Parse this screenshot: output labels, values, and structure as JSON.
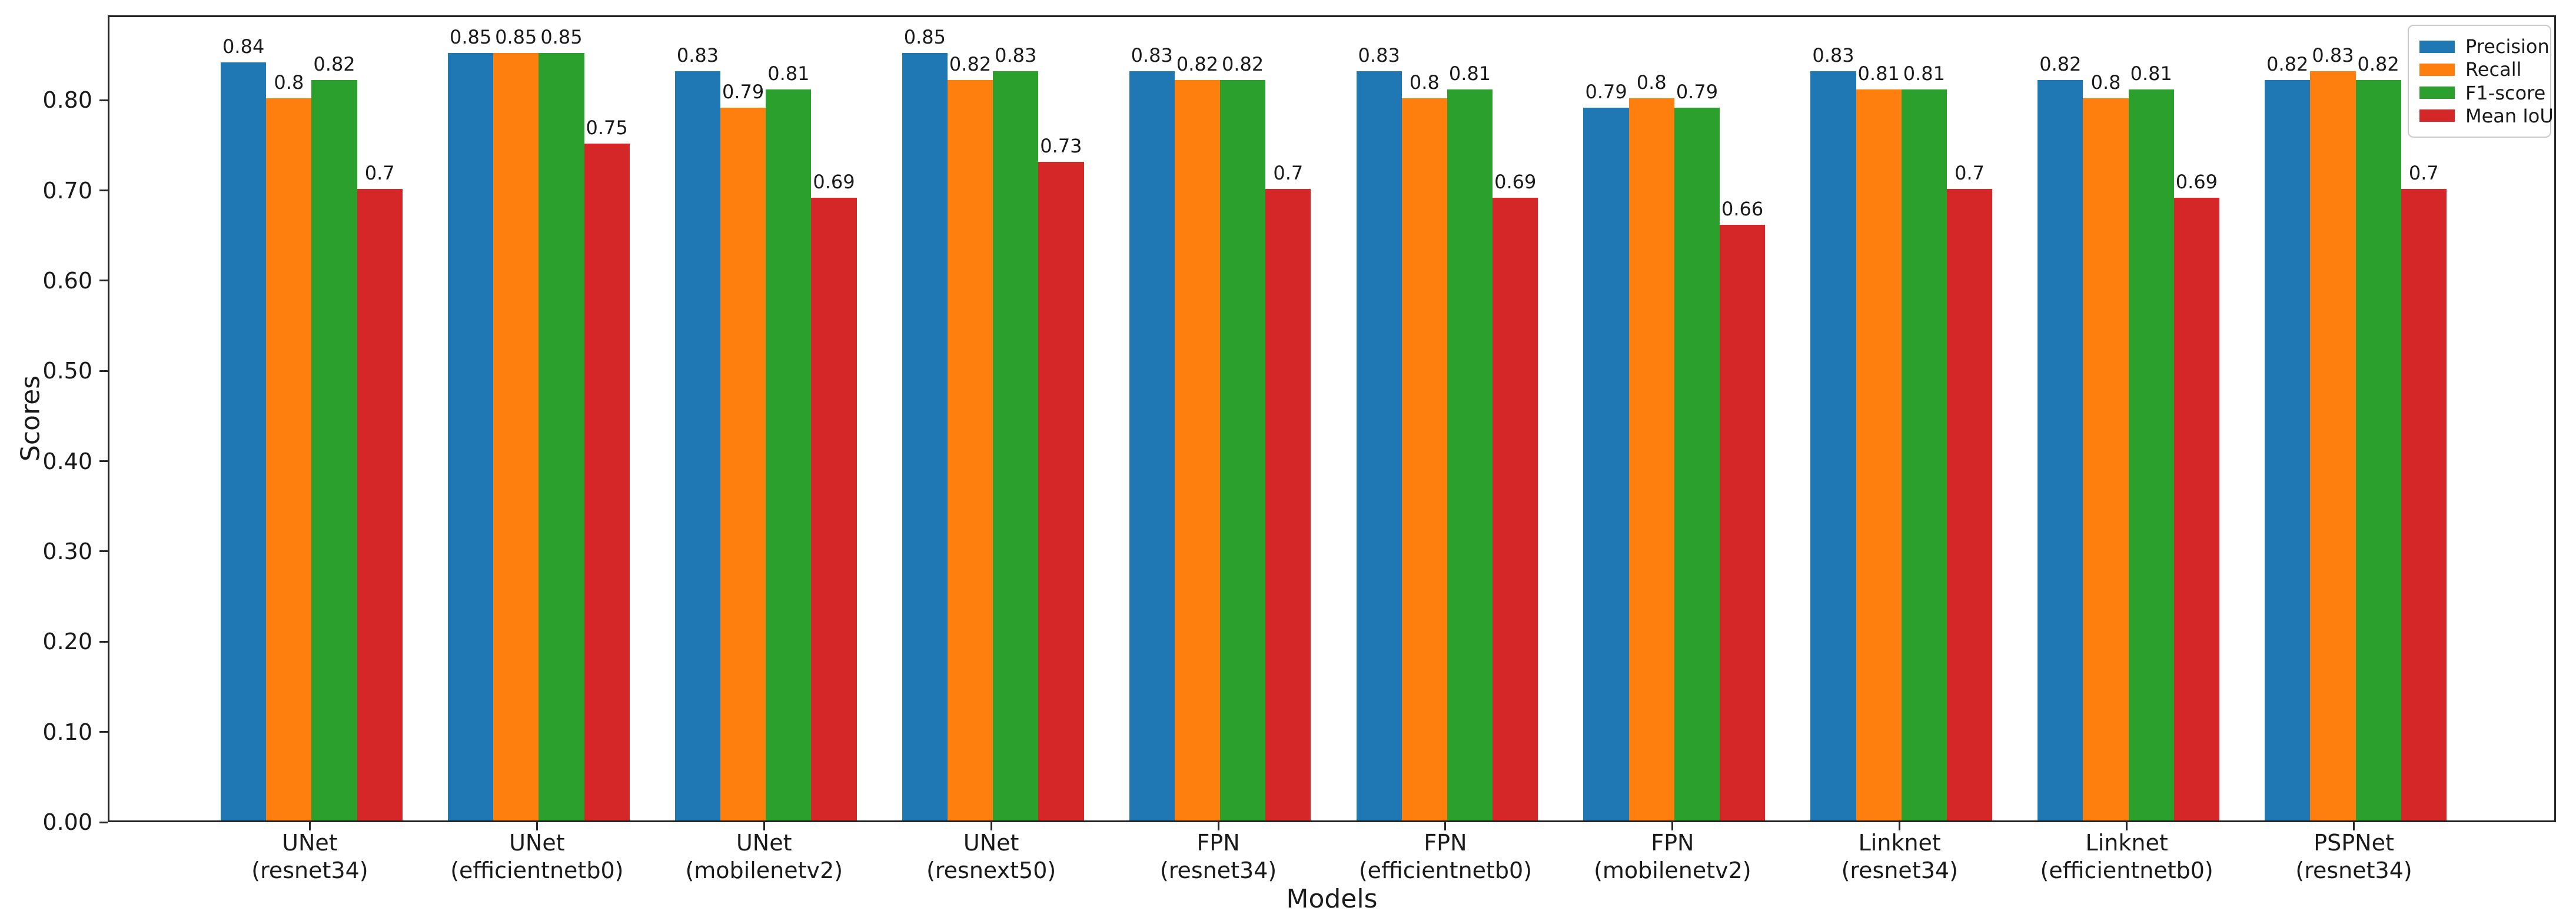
{
  "chart_data": {
    "type": "bar",
    "title": "",
    "xlabel": "Models",
    "ylabel": "Scores",
    "ylim": [
      0,
      0.894
    ],
    "grid": false,
    "legend_position": "upper right",
    "yticks": [
      "0.00",
      "0.10",
      "0.20",
      "0.30",
      "0.40",
      "0.50",
      "0.60",
      "0.70",
      "0.80"
    ],
    "ytick_values": [
      0.0,
      0.1,
      0.2,
      0.3,
      0.4,
      0.5,
      0.6,
      0.7,
      0.8
    ],
    "categories": [
      [
        "UNet",
        "(resnet34)"
      ],
      [
        "UNet",
        "(efficientnetb0)"
      ],
      [
        "UNet",
        "(mobilenetv2)"
      ],
      [
        "UNet",
        "(resnext50)"
      ],
      [
        "FPN",
        "(resnet34)"
      ],
      [
        "FPN",
        "(efficientnetb0)"
      ],
      [
        "FPN",
        "(mobilenetv2)"
      ],
      [
        "Linknet",
        "(resnet34)"
      ],
      [
        "Linknet",
        "(efficientnetb0)"
      ],
      [
        "PSPNet",
        "(resnet34)"
      ]
    ],
    "series": [
      {
        "name": "Precision",
        "color": "#1f77b4",
        "values": [
          0.84,
          0.85,
          0.83,
          0.85,
          0.83,
          0.83,
          0.79,
          0.83,
          0.82,
          0.82
        ]
      },
      {
        "name": "Recall",
        "color": "#ff7f0e",
        "values": [
          0.8,
          0.85,
          0.79,
          0.82,
          0.82,
          0.8,
          0.8,
          0.81,
          0.8,
          0.83
        ]
      },
      {
        "name": "F1-score",
        "color": "#2ca02c",
        "values": [
          0.82,
          0.85,
          0.81,
          0.83,
          0.82,
          0.81,
          0.79,
          0.81,
          0.81,
          0.82
        ]
      },
      {
        "name": "Mean IoU",
        "color": "#d62728",
        "values": [
          0.7,
          0.75,
          0.69,
          0.73,
          0.7,
          0.69,
          0.66,
          0.7,
          0.69,
          0.7
        ]
      }
    ]
  }
}
